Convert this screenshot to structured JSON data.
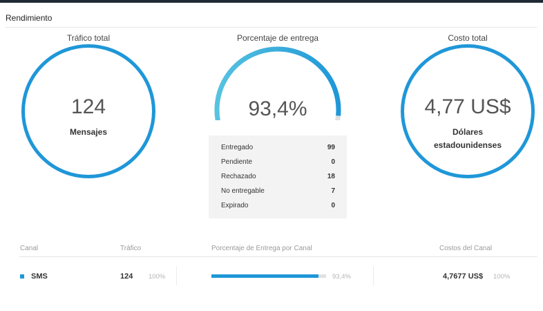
{
  "header": {
    "title": "Rendimiento"
  },
  "metrics": {
    "traffic": {
      "title": "Tráfico total",
      "value": "124",
      "caption": "Mensajes"
    },
    "delivery": {
      "title": "Porcentaje de entrega",
      "value": "93,4%",
      "fraction": 0.934
    },
    "cost": {
      "title": "Costo total",
      "value": "4,77 US$",
      "caption_line1": "Dólares",
      "caption_line2": "estadounidenses"
    }
  },
  "status": [
    {
      "label": "Entregado",
      "value": "99"
    },
    {
      "label": "Pendiente",
      "value": "0"
    },
    {
      "label": "Rechazado",
      "value": "18"
    },
    {
      "label": "No entregable",
      "value": "7"
    },
    {
      "label": "Expirado",
      "value": "0"
    }
  ],
  "table": {
    "headers": {
      "channel": "Canal",
      "traffic": "Tráfico",
      "delivery": "Porcentaje de Entrega por Canal",
      "costs": "Costos del Canal"
    },
    "rows": [
      {
        "channel": "SMS",
        "traffic": "124",
        "traffic_pct": "100%",
        "delivery_pct": "93,4%",
        "delivery_fraction": 0.934,
        "cost": "4,7677 US$",
        "cost_pct": "100%"
      }
    ]
  },
  "colors": {
    "accent": "#1f97d8",
    "gauge_start": "#56c3e0",
    "gauge_track": "#e0e0e0"
  }
}
